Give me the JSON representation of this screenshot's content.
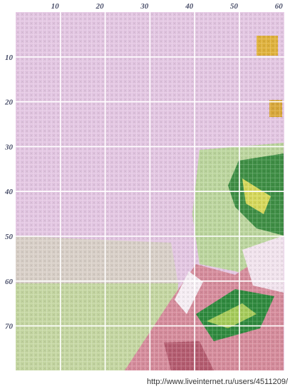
{
  "pattern": {
    "column_labels": [
      10,
      20,
      30,
      40,
      50,
      60
    ],
    "row_labels": [
      10,
      20,
      30,
      40,
      50,
      60,
      70
    ],
    "watermark": "http://www.liveinternet.ru/users/4511209/"
  }
}
